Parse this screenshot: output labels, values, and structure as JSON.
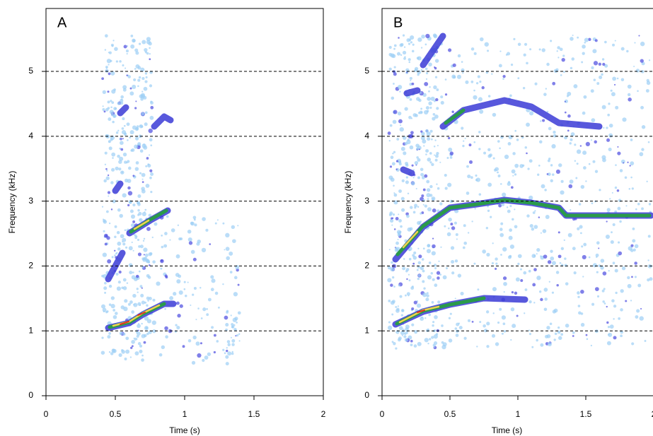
{
  "chart_data": [
    {
      "type": "spectrogram",
      "panel_label": "A",
      "xlabel": "Time (s)",
      "ylabel": "Frequency (kHz)",
      "xlim": [
        0,
        2
      ],
      "ylim": [
        0,
        5.97
      ],
      "xticks": [
        0,
        0.5,
        1,
        1.5,
        2
      ],
      "yticks": [
        0,
        1,
        2,
        3,
        4,
        5
      ],
      "grid": true
    },
    {
      "type": "spectrogram",
      "panel_label": "B",
      "xlabel": "Time (s)",
      "ylabel": "Frequency (kHz)",
      "xlim": [
        0,
        2
      ],
      "ylim": [
        0,
        5.97
      ],
      "xticks": [
        0,
        0.5,
        1,
        1.5,
        2
      ],
      "yticks": [
        0,
        1,
        2,
        3,
        4,
        5
      ],
      "grid": true
    }
  ]
}
